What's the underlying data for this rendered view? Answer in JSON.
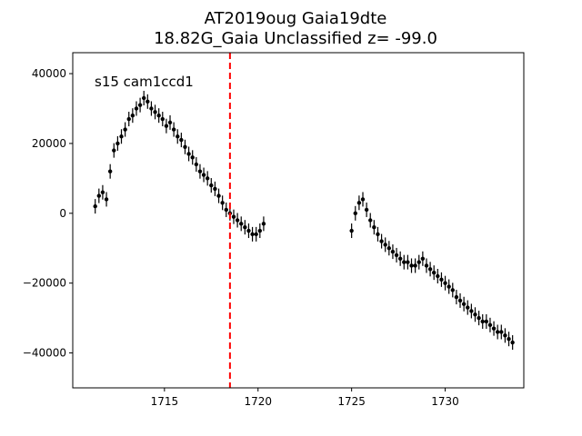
{
  "chart_data": {
    "type": "scatter",
    "title_line1": "AT2019oug  Gaia19dte",
    "title_line2": "18.82G_Gaia Unclassified z= -99.0",
    "annotation": "s15 cam1ccd1",
    "xlabel": "",
    "ylabel": "",
    "xlim": [
      1710.1,
      1734.2
    ],
    "ylim": [
      -50000,
      46000
    ],
    "xticks": [
      1715,
      1720,
      1725,
      1730
    ],
    "xtick_labels": [
      "1715",
      "1720",
      "1725",
      "1730"
    ],
    "yticks": [
      -40000,
      -20000,
      0,
      20000,
      40000
    ],
    "ytick_labels": [
      "−40000",
      "−20000",
      "0",
      "20000",
      "40000"
    ],
    "vline_x": 1718.5,
    "vline_color": "#ff0000",
    "point_color": "#000000",
    "grid": false,
    "series": [
      {
        "values_note": "",
        "x": [
          1711.3,
          1711.5,
          1711.7,
          1711.9,
          1712.1,
          1712.3,
          1712.5,
          1712.7,
          1712.9,
          1713.1,
          1713.3,
          1713.5,
          1713.7,
          1713.9,
          1714.1,
          1714.3,
          1714.5,
          1714.7,
          1714.9,
          1715.1,
          1715.3,
          1715.5,
          1715.7,
          1715.9,
          1716.1,
          1716.3,
          1716.5,
          1716.7,
          1716.9,
          1717.1,
          1717.3,
          1717.5,
          1717.7,
          1717.9,
          1718.1,
          1718.3,
          1718.5,
          1718.7,
          1718.9,
          1719.1,
          1719.3,
          1719.5,
          1719.7,
          1719.9,
          1720.1,
          1720.3,
          1725.0,
          1725.2,
          1725.4,
          1725.6,
          1725.8,
          1726.0,
          1726.2,
          1726.4,
          1726.6,
          1726.8,
          1727.0,
          1727.2,
          1727.4,
          1727.6,
          1727.8,
          1728.0,
          1728.2,
          1728.4,
          1728.6,
          1728.8,
          1729.0,
          1729.2,
          1729.4,
          1729.6,
          1729.8,
          1730.0,
          1730.2,
          1730.4,
          1730.6,
          1730.8,
          1731.0,
          1731.2,
          1731.4,
          1731.6,
          1731.8,
          1732.0,
          1732.2,
          1732.4,
          1732.6,
          1732.8,
          1733.0,
          1733.2,
          1733.4,
          1733.6
        ],
        "y": [
          2000,
          5000,
          6000,
          4000,
          12000,
          18000,
          20000,
          22000,
          24000,
          27000,
          28000,
          30000,
          31000,
          33000,
          32000,
          30000,
          29000,
          28000,
          27000,
          25000,
          26000,
          24000,
          22000,
          21000,
          19000,
          17000,
          16000,
          14000,
          12000,
          11000,
          10000,
          8000,
          7000,
          5000,
          3000,
          1000,
          0,
          -1000,
          -2000,
          -3000,
          -4000,
          -5000,
          -6000,
          -6000,
          -5000,
          -3000,
          -5000,
          0,
          3000,
          4000,
          1000,
          -2000,
          -4000,
          -6000,
          -8000,
          -9000,
          -10000,
          -11000,
          -12000,
          -13000,
          -14000,
          -14000,
          -15000,
          -15000,
          -14000,
          -13000,
          -15000,
          -16000,
          -17000,
          -18000,
          -19000,
          -20000,
          -21000,
          -22000,
          -24000,
          -25000,
          -26000,
          -27000,
          -28000,
          -29000,
          -30000,
          -31000,
          -31000,
          -32000,
          -33000,
          -34000,
          -34000,
          -35000,
          -36000,
          -37000
        ]
      }
    ]
  }
}
